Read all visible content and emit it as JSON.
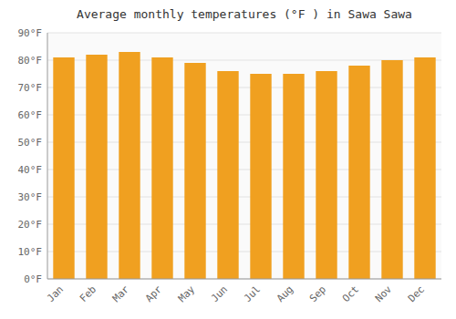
{
  "chart_data": {
    "type": "bar",
    "title": "Average monthly temperatures (°F ) in Sawa Sawa",
    "categories": [
      "Jan",
      "Feb",
      "Mar",
      "Apr",
      "May",
      "Jun",
      "Jul",
      "Aug",
      "Sep",
      "Oct",
      "Nov",
      "Dec"
    ],
    "values": [
      81,
      82,
      83,
      81,
      79,
      76,
      75,
      75,
      76,
      78,
      80,
      81
    ],
    "color": "#F0A020",
    "ylim": [
      0,
      90
    ],
    "yticks": [
      {
        "value": 0,
        "label": "0°F"
      },
      {
        "value": 10,
        "label": "10°F"
      },
      {
        "value": 20,
        "label": "20°F"
      },
      {
        "value": 30,
        "label": "30°F"
      },
      {
        "value": 40,
        "label": "40°F"
      },
      {
        "value": 50,
        "label": "50°F"
      },
      {
        "value": 60,
        "label": "60°F"
      },
      {
        "value": 70,
        "label": "70°F"
      },
      {
        "value": 80,
        "label": "80°F"
      },
      {
        "value": 90,
        "label": "90°F"
      }
    ],
    "grid": true
  }
}
